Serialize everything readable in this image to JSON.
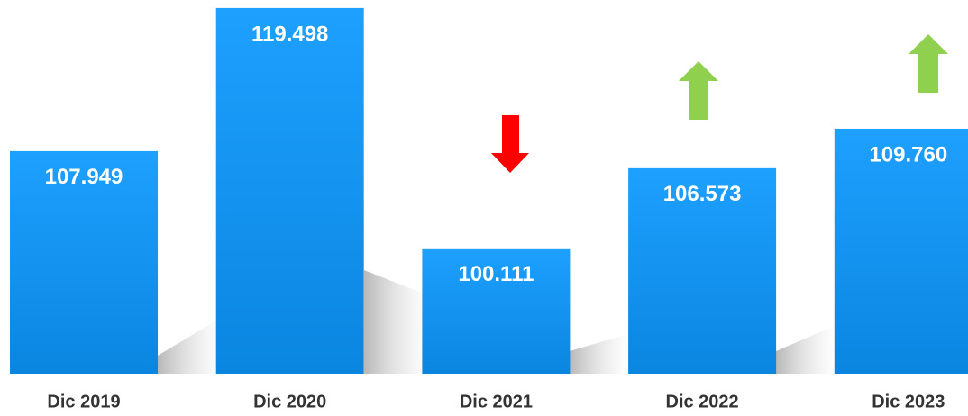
{
  "chart_data": {
    "type": "bar",
    "categories": [
      "Dic 2019",
      "Dic 2020",
      "Dic 2021",
      "Dic 2022",
      "Dic 2023"
    ],
    "values": [
      107949,
      119498,
      100111,
      106573,
      109760
    ],
    "value_labels": [
      "107.949",
      "119.498",
      "100.111",
      "106.573",
      "109.760"
    ],
    "color": "#1a9af5",
    "ylim": [
      90000,
      120000
    ]
  }
}
